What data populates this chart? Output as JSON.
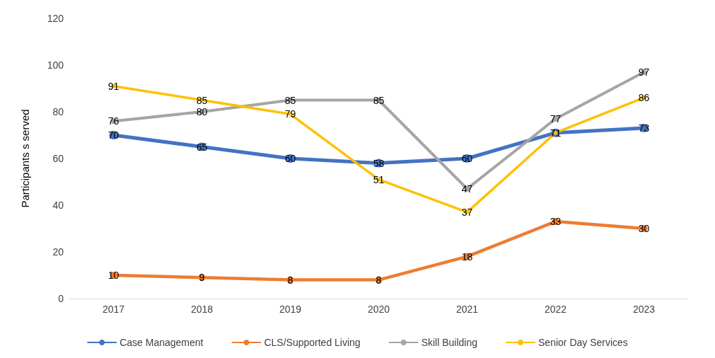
{
  "chart_data": {
    "type": "line",
    "ylabel": "Participants s served",
    "categories": [
      "2017",
      "2018",
      "2019",
      "2020",
      "2021",
      "2022",
      "2023"
    ],
    "series": [
      {
        "name": "Case Management",
        "color": "#4472c4",
        "values": [
          70,
          65,
          60,
          58,
          60,
          71,
          73
        ],
        "value_labels": [
          "70",
          "65",
          "60",
          "58",
          "60",
          null,
          "73"
        ]
      },
      {
        "name": "CLS/Supported Living",
        "color": "#ed7d31",
        "values": [
          10,
          9,
          8,
          8,
          18,
          33,
          30
        ],
        "value_labels": [
          "10",
          "9",
          "8",
          "8",
          "18",
          "33",
          "30"
        ]
      },
      {
        "name": "Skill Building",
        "color": "#a5a5a5",
        "values": [
          76,
          80,
          85,
          85,
          47,
          77,
          97
        ],
        "value_labels": [
          "76",
          "80",
          "85",
          "85",
          "47",
          "77",
          "97"
        ]
      },
      {
        "name": "Senior Day Services",
        "color": "#ffc000",
        "values": [
          91,
          85,
          79,
          51,
          37,
          71,
          86
        ],
        "value_labels": [
          "91",
          "85",
          "79",
          "51",
          "37",
          "71",
          "86"
        ]
      }
    ],
    "ylim": [
      0,
      120
    ],
    "yticks": [
      0,
      20,
      40,
      60,
      80,
      100,
      120
    ],
    "grid": false,
    "legend": "bottom",
    "marker": "circle",
    "line_style": "solid"
  }
}
